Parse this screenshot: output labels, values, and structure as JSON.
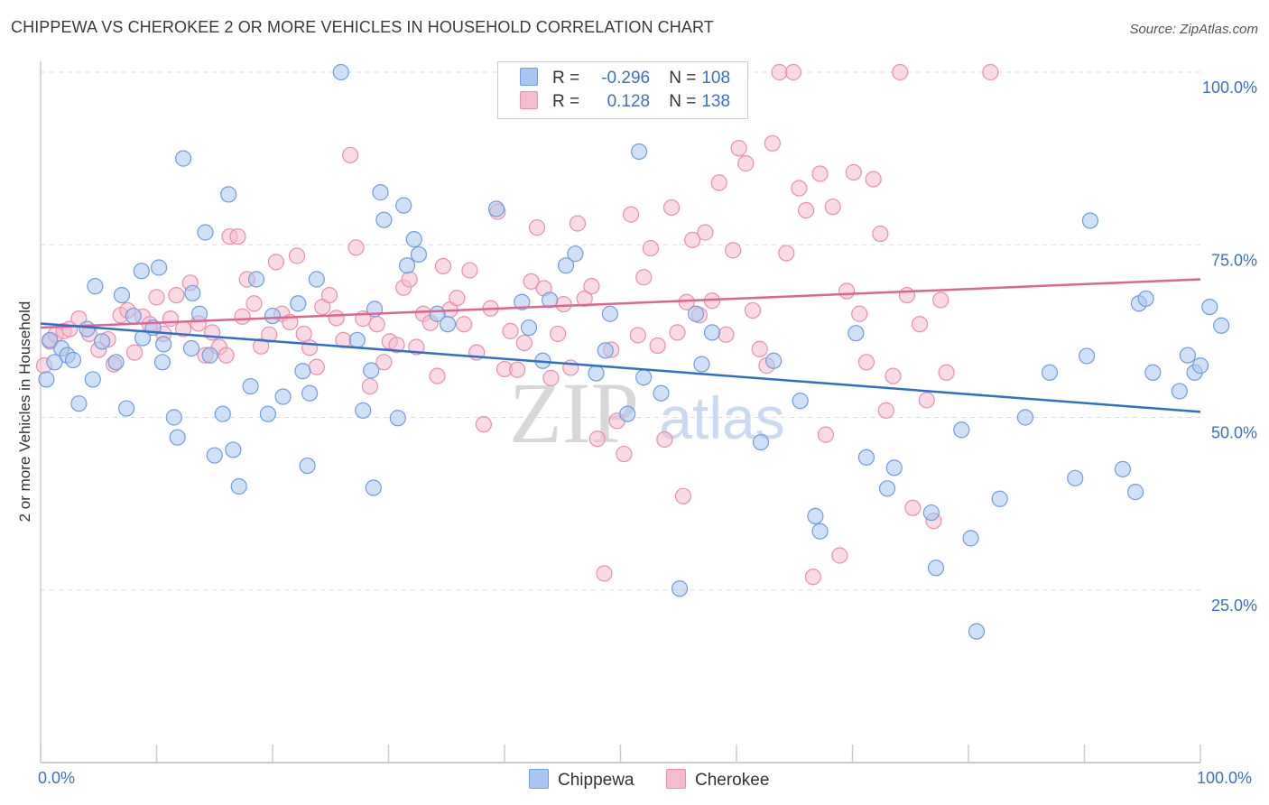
{
  "title": "CHIPPEWA VS CHEROKEE 2 OR MORE VEHICLES IN HOUSEHOLD CORRELATION CHART",
  "source": "Source: ZipAtlas.com",
  "watermark_zip": "ZIP",
  "watermark_atlas": "atlas",
  "legend": {
    "rows": [
      {
        "r_label": "R =",
        "r_value": "-0.296",
        "n_label": "N =",
        "n_value": "108"
      },
      {
        "r_label": "R =",
        "r_value": "0.128",
        "n_label": "N =",
        "n_value": "138"
      }
    ]
  },
  "bottom_legend": {
    "chippewa": "Chippewa",
    "cherokee": "Cherokee"
  },
  "x_tick_labels": {
    "left": "0.0%",
    "right": "100.0%"
  },
  "colors": {
    "chippewa_fill": "#a9c6f0",
    "chippewa_stroke": "#6f9de0",
    "chippewa_line": "#2f6fcc",
    "cherokee_fill": "#f6bccd",
    "cherokee_stroke": "#ec8fab",
    "cherokee_line": "#e0648e",
    "axis_text": "#3b6fd0",
    "grid": "#dddddd"
  },
  "chart_data": {
    "type": "scatter",
    "title": "CHIPPEWA VS CHEROKEE 2 OR MORE VEHICLES IN HOUSEHOLD CORRELATION CHART",
    "xlabel": "",
    "ylabel": "2 or more Vehicles in Household",
    "xlim": [
      0,
      100
    ],
    "ylim": [
      0,
      102
    ],
    "y_ticks": [
      25,
      50,
      75,
      100
    ],
    "y_tick_labels": [
      "25.0%",
      "50.0%",
      "75.0%",
      "100.0%"
    ],
    "x_tick_labels": [
      "0.0%",
      "100.0%"
    ],
    "grid": true,
    "legend_position": "top-center",
    "series": [
      {
        "name": "Chippewa",
        "r": -0.296,
        "n": 108,
        "trend": [
          [
            0,
            63.6
          ],
          [
            100,
            50.8
          ]
        ],
        "points": [
          [
            0.5,
            55.5
          ],
          [
            0.8,
            61.2
          ],
          [
            1.2,
            58
          ],
          [
            1.8,
            60
          ],
          [
            2.3,
            59
          ],
          [
            2.8,
            58.3
          ],
          [
            3.3,
            52
          ],
          [
            4,
            62.8
          ],
          [
            4.5,
            55.5
          ],
          [
            4.7,
            69
          ],
          [
            5.3,
            61
          ],
          [
            6.5,
            58
          ],
          [
            7,
            67.7
          ],
          [
            7.4,
            51.3
          ],
          [
            8,
            64.7
          ],
          [
            8.7,
            71.2
          ],
          [
            8.8,
            61.5
          ],
          [
            9.7,
            63
          ],
          [
            10.2,
            71.7
          ],
          [
            10.5,
            58
          ],
          [
            10.6,
            60.6
          ],
          [
            11.5,
            50
          ],
          [
            11.8,
            47.1
          ],
          [
            12.3,
            87.5
          ],
          [
            13,
            60
          ],
          [
            13.1,
            68
          ],
          [
            13.7,
            65
          ],
          [
            14.2,
            76.8
          ],
          [
            14.6,
            59
          ],
          [
            15,
            44.5
          ],
          [
            15.7,
            50.5
          ],
          [
            16.2,
            82.3
          ],
          [
            16.6,
            45.3
          ],
          [
            17.1,
            40
          ],
          [
            18.1,
            54.5
          ],
          [
            18.6,
            70
          ],
          [
            19.6,
            50.5
          ],
          [
            20,
            64.7
          ],
          [
            20.9,
            53
          ],
          [
            22.2,
            66.5
          ],
          [
            22.6,
            56.7
          ],
          [
            23,
            43
          ],
          [
            23.2,
            53.5
          ],
          [
            23.8,
            70
          ],
          [
            25.9,
            100
          ],
          [
            27.3,
            61.2
          ],
          [
            27.8,
            51
          ],
          [
            28.5,
            56.8
          ],
          [
            28.7,
            39.8
          ],
          [
            28.8,
            65.7
          ],
          [
            29.3,
            82.6
          ],
          [
            29.6,
            78.6
          ],
          [
            30.8,
            49.9
          ],
          [
            31.3,
            80.7
          ],
          [
            31.6,
            72
          ],
          [
            32.2,
            75.8
          ],
          [
            32.6,
            73.6
          ],
          [
            34.2,
            65
          ],
          [
            35.1,
            63.5
          ],
          [
            39.3,
            80.2
          ],
          [
            41.5,
            66.7
          ],
          [
            42.1,
            63
          ],
          [
            43.3,
            58.2
          ],
          [
            43.9,
            67
          ],
          [
            45.3,
            72
          ],
          [
            46.1,
            73.7
          ],
          [
            47.9,
            56.4
          ],
          [
            48.7,
            59.7
          ],
          [
            49.1,
            65
          ],
          [
            50.6,
            50.5
          ],
          [
            51.6,
            88.5
          ],
          [
            52,
            55.8
          ],
          [
            53.5,
            53.5
          ],
          [
            55.1,
            25.2
          ],
          [
            56.5,
            65
          ],
          [
            57,
            57.7
          ],
          [
            57.9,
            62.3
          ],
          [
            62.1,
            46.4
          ],
          [
            63.2,
            58.2
          ],
          [
            65.5,
            52.4
          ],
          [
            66.8,
            35.7
          ],
          [
            67.2,
            33.5
          ],
          [
            70.3,
            62.2
          ],
          [
            71.2,
            44.2
          ],
          [
            73,
            39.7
          ],
          [
            73.6,
            42.7
          ],
          [
            76.8,
            36.2
          ],
          [
            77.2,
            28.2
          ],
          [
            79.4,
            48.2
          ],
          [
            80.2,
            32.5
          ],
          [
            80.7,
            19
          ],
          [
            82.7,
            38.2
          ],
          [
            84.9,
            50
          ],
          [
            87,
            56.5
          ],
          [
            89.2,
            41.2
          ],
          [
            90.2,
            58.9
          ],
          [
            90.5,
            78.5
          ],
          [
            93.3,
            42.5
          ],
          [
            94.4,
            39.2
          ],
          [
            94.7,
            66.5
          ],
          [
            95.3,
            67.2
          ],
          [
            95.9,
            56.5
          ],
          [
            98.2,
            53.8
          ],
          [
            98.9,
            59
          ],
          [
            99.5,
            56.5
          ],
          [
            100,
            57.5
          ],
          [
            100.8,
            66
          ],
          [
            101.8,
            63.3
          ]
        ]
      },
      {
        "name": "Cherokee",
        "r": 0.128,
        "n": 138,
        "trend": [
          [
            0,
            63
          ],
          [
            100,
            70
          ]
        ],
        "points": [
          [
            0.3,
            57.5
          ],
          [
            0.8,
            61
          ],
          [
            1.3,
            62
          ],
          [
            2,
            62.5
          ],
          [
            2.5,
            62.8
          ],
          [
            3.3,
            64.3
          ],
          [
            4.2,
            62.1
          ],
          [
            5,
            59.8
          ],
          [
            5.8,
            61.3
          ],
          [
            6.3,
            57.7
          ],
          [
            6.9,
            64.8
          ],
          [
            7.5,
            65.5
          ],
          [
            8.1,
            59.4
          ],
          [
            8.8,
            64.6
          ],
          [
            9.4,
            63.5
          ],
          [
            10,
            67.4
          ],
          [
            10.6,
            62.1
          ],
          [
            11.2,
            64.3
          ],
          [
            11.7,
            67.7
          ],
          [
            12.3,
            62.8
          ],
          [
            12.9,
            69.5
          ],
          [
            13.6,
            63.6
          ],
          [
            14.2,
            59
          ],
          [
            14.8,
            62.3
          ],
          [
            15.4,
            60.2
          ],
          [
            16,
            59
          ],
          [
            16.3,
            76.2
          ],
          [
            17,
            76.2
          ],
          [
            17.4,
            64.6
          ],
          [
            17.8,
            70
          ],
          [
            18.4,
            66.5
          ],
          [
            19,
            60.3
          ],
          [
            19.7,
            62
          ],
          [
            20.3,
            72.5
          ],
          [
            20.8,
            65
          ],
          [
            21.5,
            63.8
          ],
          [
            22.1,
            73.4
          ],
          [
            22.7,
            62.1
          ],
          [
            23.2,
            60.1
          ],
          [
            23.8,
            57.3
          ],
          [
            24.3,
            66
          ],
          [
            24.9,
            67.7
          ],
          [
            25.5,
            64.4
          ],
          [
            26.1,
            61.2
          ],
          [
            26.7,
            88
          ],
          [
            27.2,
            74.6
          ],
          [
            27.8,
            64.3
          ],
          [
            28.4,
            54.5
          ],
          [
            29,
            63.5
          ],
          [
            29.6,
            58
          ],
          [
            30.1,
            61
          ],
          [
            30.7,
            60.5
          ],
          [
            31.3,
            68.8
          ],
          [
            31.8,
            70
          ],
          [
            32.4,
            60.2
          ],
          [
            33,
            65
          ],
          [
            33.6,
            63.7
          ],
          [
            34.2,
            56
          ],
          [
            34.7,
            71.9
          ],
          [
            35.3,
            65.6
          ],
          [
            35.9,
            67.3
          ],
          [
            36.5,
            63.5
          ],
          [
            37,
            71.3
          ],
          [
            37.6,
            59.4
          ],
          [
            38.2,
            49
          ],
          [
            38.8,
            65.8
          ],
          [
            39.4,
            79.8
          ],
          [
            40,
            57
          ],
          [
            40.5,
            62.5
          ],
          [
            41.1,
            56.9
          ],
          [
            41.7,
            60.8
          ],
          [
            42.3,
            69.7
          ],
          [
            42.8,
            77.5
          ],
          [
            43.4,
            68.7
          ],
          [
            44,
            55.7
          ],
          [
            44.6,
            62.1
          ],
          [
            45.1,
            66.4
          ],
          [
            45.7,
            57.2
          ],
          [
            46.3,
            78.1
          ],
          [
            46.9,
            67.2
          ],
          [
            47.5,
            69
          ],
          [
            48,
            46.9
          ],
          [
            48.6,
            27.4
          ],
          [
            49.2,
            59.8
          ],
          [
            49.7,
            49.5
          ],
          [
            50.3,
            44.7
          ],
          [
            50.9,
            79.4
          ],
          [
            51.5,
            61.9
          ],
          [
            52,
            70.3
          ],
          [
            52.6,
            74.5
          ],
          [
            53.2,
            60.4
          ],
          [
            53.8,
            46.8
          ],
          [
            54.4,
            80.4
          ],
          [
            54.9,
            62.3
          ],
          [
            55.4,
            38.6
          ],
          [
            55.7,
            66.7
          ],
          [
            56.2,
            75.7
          ],
          [
            56.8,
            64.8
          ],
          [
            57.3,
            76.8
          ],
          [
            57.9,
            66.9
          ],
          [
            58.5,
            84
          ],
          [
            59.1,
            62
          ],
          [
            59.7,
            74.2
          ],
          [
            60.2,
            89
          ],
          [
            60.8,
            86.8
          ],
          [
            61.4,
            65.5
          ],
          [
            62,
            59.9
          ],
          [
            62.6,
            57.5
          ],
          [
            63.1,
            89.7
          ],
          [
            63.7,
            100
          ],
          [
            64.3,
            73.8
          ],
          [
            64.9,
            100
          ],
          [
            65.4,
            83.2
          ],
          [
            66,
            80
          ],
          [
            66.6,
            26.9
          ],
          [
            67.2,
            85.3
          ],
          [
            67.7,
            47.5
          ],
          [
            68.3,
            80.5
          ],
          [
            68.9,
            30
          ],
          [
            69.5,
            68.3
          ],
          [
            70.1,
            85.5
          ],
          [
            70.6,
            65
          ],
          [
            71.2,
            58
          ],
          [
            71.8,
            84.5
          ],
          [
            72.4,
            76.6
          ],
          [
            72.9,
            51
          ],
          [
            73.5,
            56
          ],
          [
            74.1,
            100
          ],
          [
            74.7,
            67.7
          ],
          [
            75.2,
            36.9
          ],
          [
            75.8,
            63.5
          ],
          [
            76.4,
            52.5
          ],
          [
            77,
            35
          ],
          [
            77.6,
            67
          ],
          [
            78.1,
            56.5
          ],
          [
            81.9,
            100
          ]
        ]
      }
    ]
  }
}
